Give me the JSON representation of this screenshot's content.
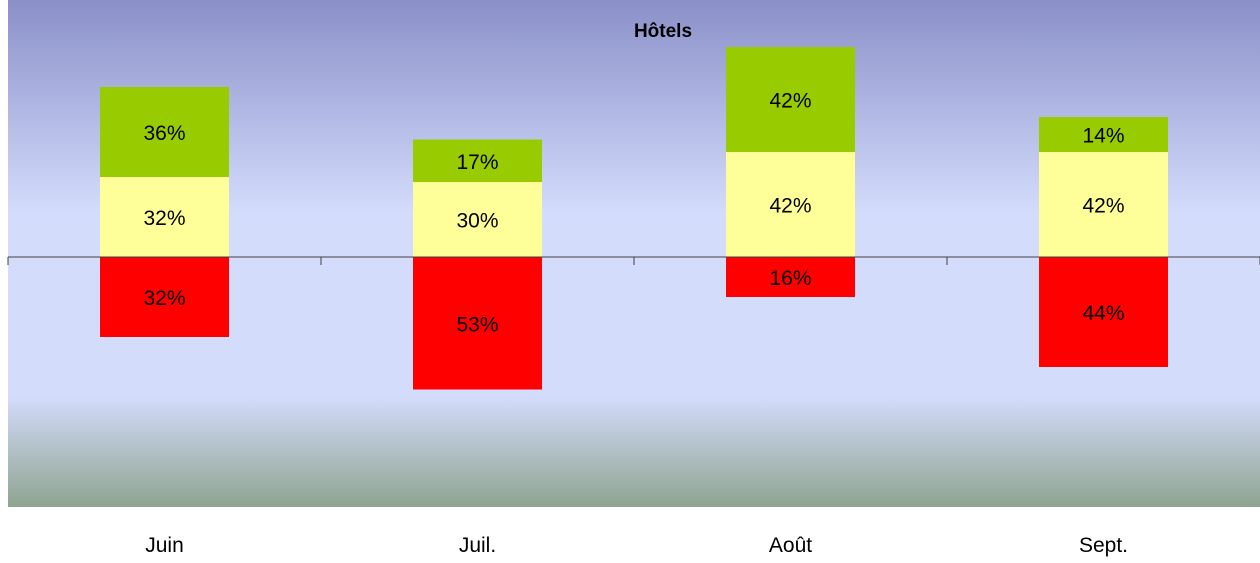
{
  "chart_data": {
    "type": "bar",
    "stacked": true,
    "diverging": true,
    "title": "",
    "subtitle": "Hôtels",
    "categories": [
      "Juin",
      "Juil.",
      "Août",
      "Sept."
    ],
    "series": [
      {
        "values": [
          32,
          30,
          42,
          42
        ],
        "labels": [
          "32%",
          "30%",
          "42%",
          "42%"
        ],
        "color": "#ffff99"
      },
      {
        "values": [
          36,
          17,
          42,
          14
        ],
        "labels": [
          "36%",
          "17%",
          "42%",
          "14%"
        ],
        "color": "#99cc00"
      },
      {
        "values": [
          -32,
          -53,
          -16,
          -44
        ],
        "labels": [
          "32%",
          "53%",
          "16%",
          "44%"
        ],
        "color": "#ff0000"
      }
    ],
    "ylim": [
      -100,
      85
    ],
    "grid": false,
    "legend": "none"
  },
  "colors": {
    "plot_top": "#8a90c8",
    "plot_mid": "#d4dcfc",
    "plot_bottom": "#8fa490",
    "axis": "#404040"
  }
}
